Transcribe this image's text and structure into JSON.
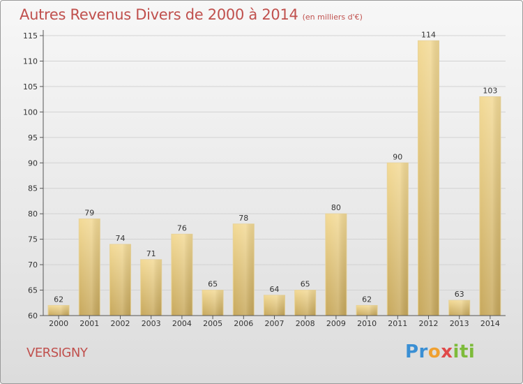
{
  "header": {
    "title": "Autres Revenus Divers de 2000 à 2014",
    "unit": "(en milliers d'€)"
  },
  "footer": {
    "town": "VERSIGNY",
    "logo_parts": [
      "Pr",
      "o",
      "x",
      "iti"
    ]
  },
  "chart_data": {
    "type": "bar",
    "title": "Autres Revenus Divers de 2000 à 2014 (en milliers d'€)",
    "xlabel": "",
    "ylabel": "",
    "categories": [
      "2000",
      "2001",
      "2002",
      "2003",
      "2004",
      "2005",
      "2006",
      "2007",
      "2008",
      "2009",
      "2010",
      "2011",
      "2012",
      "2013",
      "2014"
    ],
    "values": [
      62,
      79,
      74,
      71,
      76,
      65,
      78,
      64,
      65,
      80,
      62,
      90,
      114,
      63,
      103
    ],
    "ylim": [
      60,
      115
    ],
    "yticks": [
      60,
      65,
      70,
      75,
      80,
      85,
      90,
      95,
      100,
      105,
      110,
      115
    ],
    "grid": true,
    "bar_color": "#e8c87a"
  }
}
